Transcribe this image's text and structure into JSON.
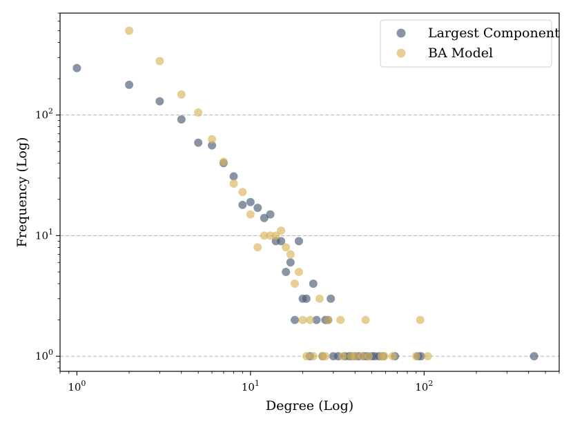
{
  "chart_data": {
    "type": "scatter",
    "title": "",
    "xlabel": "Degree (Log)",
    "ylabel": "Frequency (Log)",
    "xscale": "log",
    "yscale": "log",
    "xlim": [
      0.8,
      600
    ],
    "ylim": [
      0.75,
      700
    ],
    "grid": "y-major dashed",
    "legend_position": "top-right",
    "x_ticks": [
      {
        "value": 1,
        "base": "10",
        "exp": "0"
      },
      {
        "value": 10,
        "base": "10",
        "exp": "1"
      },
      {
        "value": 100,
        "base": "10",
        "exp": "2"
      }
    ],
    "y_ticks": [
      {
        "value": 1,
        "base": "10",
        "exp": "0"
      },
      {
        "value": 10,
        "base": "10",
        "exp": "1"
      },
      {
        "value": 100,
        "base": "10",
        "exp": "2"
      }
    ],
    "series": [
      {
        "name": "Largest Component",
        "color": "#4a5a75",
        "points": [
          [
            1,
            245
          ],
          [
            2,
            178
          ],
          [
            3,
            130
          ],
          [
            4,
            92
          ],
          [
            5,
            59
          ],
          [
            6,
            56
          ],
          [
            7,
            40
          ],
          [
            8,
            31
          ],
          [
            9,
            18
          ],
          [
            10,
            19
          ],
          [
            11,
            17
          ],
          [
            12,
            14
          ],
          [
            13,
            15
          ],
          [
            14,
            9
          ],
          [
            15,
            9
          ],
          [
            16,
            5
          ],
          [
            17,
            6
          ],
          [
            18,
            2
          ],
          [
            19,
            9
          ],
          [
            20,
            3
          ],
          [
            21,
            3
          ],
          [
            22,
            1
          ],
          [
            23,
            4
          ],
          [
            24,
            2
          ],
          [
            26,
            1
          ],
          [
            27,
            2
          ],
          [
            28,
            2
          ],
          [
            29,
            3
          ],
          [
            30,
            1
          ],
          [
            32,
            1
          ],
          [
            35,
            1
          ],
          [
            37,
            1
          ],
          [
            38,
            1
          ],
          [
            40,
            1
          ],
          [
            42,
            1
          ],
          [
            45,
            1
          ],
          [
            47,
            1
          ],
          [
            50,
            1
          ],
          [
            52,
            1
          ],
          [
            55,
            1
          ],
          [
            58,
            1
          ],
          [
            68,
            1
          ],
          [
            92,
            1
          ],
          [
            96,
            1
          ],
          [
            430,
            1
          ]
        ]
      },
      {
        "name": "BA Model",
        "color": "#d9b45c",
        "points": [
          [
            2,
            500
          ],
          [
            3,
            280
          ],
          [
            4,
            148
          ],
          [
            5,
            105
          ],
          [
            6,
            63
          ],
          [
            7,
            41
          ],
          [
            8,
            27
          ],
          [
            9,
            23
          ],
          [
            10,
            15
          ],
          [
            11,
            8
          ],
          [
            12,
            10
          ],
          [
            13,
            10
          ],
          [
            14,
            10
          ],
          [
            15,
            11
          ],
          [
            16,
            8
          ],
          [
            17,
            7
          ],
          [
            18,
            4
          ],
          [
            19,
            5
          ],
          [
            20,
            2
          ],
          [
            21,
            1
          ],
          [
            22,
            2
          ],
          [
            23,
            1
          ],
          [
            25,
            3
          ],
          [
            26,
            1
          ],
          [
            27,
            1
          ],
          [
            28,
            2
          ],
          [
            33,
            2
          ],
          [
            34,
            1
          ],
          [
            38,
            1
          ],
          [
            40,
            1
          ],
          [
            44,
            1
          ],
          [
            46,
            2
          ],
          [
            48,
            1
          ],
          [
            57,
            1
          ],
          [
            59,
            1
          ],
          [
            66,
            1
          ],
          [
            90,
            1
          ],
          [
            95,
            2
          ],
          [
            105,
            1
          ]
        ]
      }
    ]
  }
}
